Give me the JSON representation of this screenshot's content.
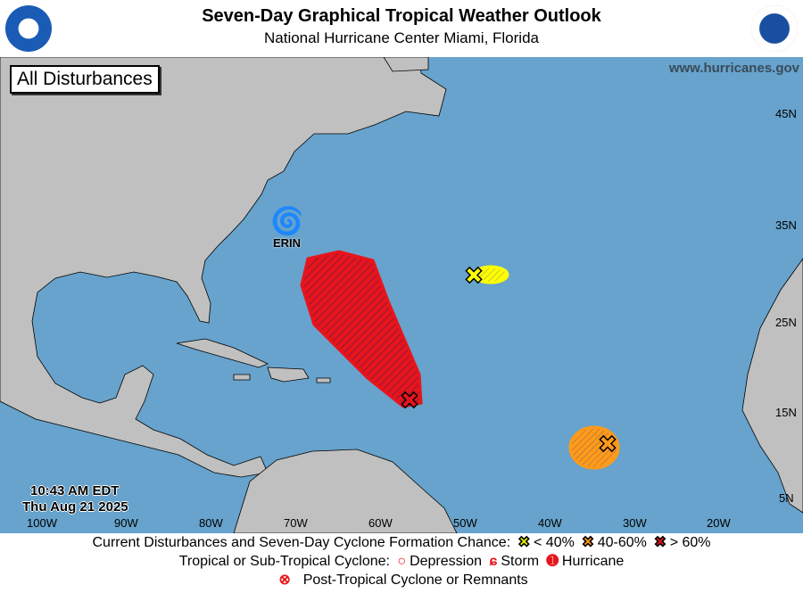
{
  "header": {
    "title": "Seven-Day Graphical Tropical Weather Outlook",
    "subtitle": "National Hurricane Center  Miami, Florida",
    "left_logo": "NOAA",
    "right_logo": "NATIONAL WEATHER SERVICE"
  },
  "map": {
    "badge": "All Disturbances",
    "url": "www.hurricanes.gov",
    "timestamp": {
      "time": "10:43 AM EDT",
      "date": "Thu Aug 21 2025"
    },
    "lat_labels": [
      "45N",
      "35N",
      "25N",
      "15N",
      "5N"
    ],
    "lon_labels": [
      "100W",
      "90W",
      "80W",
      "70W",
      "60W",
      "50W",
      "40W",
      "30W",
      "20W"
    ],
    "storms": [
      {
        "name": "ERIN",
        "type": "Hurricane"
      }
    ],
    "disturbances": [
      {
        "chance": "> 60%",
        "color": "#e8141c"
      },
      {
        "chance": "< 40%",
        "color": "#ffff00"
      },
      {
        "chance": "40-60%",
        "color": "#ff9a1a"
      }
    ],
    "colors": {
      "ocean": "#67a3cc",
      "land": "#c0c0c0"
    }
  },
  "legend": {
    "row1_label": "Current Disturbances and Seven-Day Cyclone Formation Chance:",
    "low": "< 40%",
    "mid": "40-60%",
    "high": "> 60%",
    "row2_label": "Tropical or Sub-Tropical Cyclone:",
    "depression": "Depression",
    "storm": "Storm",
    "hurricane": "Hurricane",
    "row3_label": "Post-Tropical Cyclone or Remnants"
  }
}
